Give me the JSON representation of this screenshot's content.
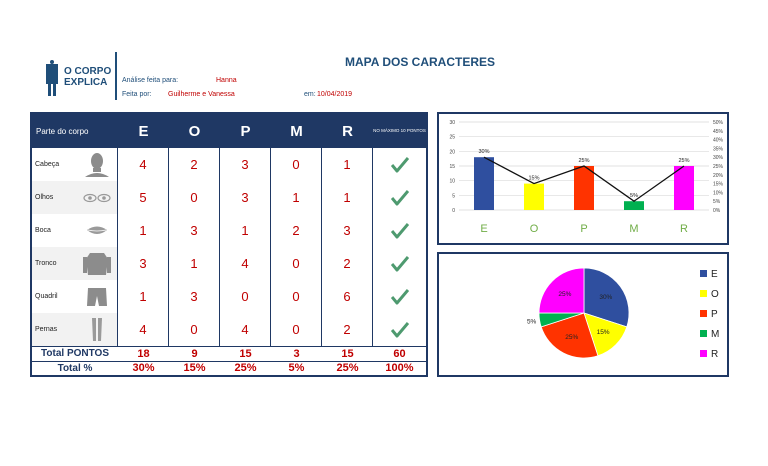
{
  "header": {
    "logo_line1": "O CORPO",
    "logo_line2": "EXPLICA",
    "analysis_label": "Análise feita para:",
    "analysis_value": "Hanna",
    "made_by_label": "Feita por:",
    "made_by_value": "Guilherme e Vanessa",
    "date_label": "em:",
    "date_value": "10/04/2019",
    "title": "MAPA DOS CARACTERES"
  },
  "table": {
    "corner_label": "Parte do corpo",
    "columns": [
      "E",
      "O",
      "P",
      "M",
      "R"
    ],
    "last_col_label": "NO MÁXIMO 10 PONTOS",
    "rows": [
      {
        "label": "Cabeça",
        "icon": "head-icon",
        "values": [
          4,
          2,
          3,
          0,
          1
        ]
      },
      {
        "label": "Olhos",
        "icon": "eyes-icon",
        "values": [
          5,
          0,
          3,
          1,
          1
        ]
      },
      {
        "label": "Boca",
        "icon": "mouth-icon",
        "values": [
          1,
          3,
          1,
          2,
          3
        ]
      },
      {
        "label": "Tronco",
        "icon": "torso-icon",
        "values": [
          3,
          1,
          4,
          0,
          2
        ]
      },
      {
        "label": "Quadril",
        "icon": "hip-icon",
        "values": [
          1,
          3,
          0,
          0,
          6
        ]
      },
      {
        "label": "Pernas",
        "icon": "legs-icon",
        "values": [
          4,
          0,
          4,
          0,
          2
        ]
      }
    ],
    "total_label": "Total PONTOS",
    "totals": [
      "18",
      "9",
      "15",
      "3",
      "15",
      "60"
    ],
    "percent_label": "Total %",
    "percents": [
      "30%",
      "15%",
      "25%",
      "5%",
      "25%",
      "100%"
    ]
  },
  "colors": {
    "navy": "#1f3864",
    "red": "#c00000",
    "check": "#4e9a6f",
    "E": "#2f4f9f",
    "O": "#ffff00",
    "P": "#ff3300",
    "M": "#00b050",
    "R": "#ff00ff"
  },
  "chart_data": [
    {
      "type": "bar",
      "categories": [
        "E",
        "O",
        "P",
        "M",
        "R"
      ],
      "values": [
        18,
        9,
        15,
        3,
        15
      ],
      "ylim": [
        0,
        30
      ],
      "yticks": [
        "0",
        "5",
        "10",
        "15",
        "20",
        "25",
        "30"
      ],
      "secondary_line": {
        "values": [
          30,
          15,
          25,
          5,
          25
        ],
        "labels": [
          "30%",
          "15%",
          "25%",
          "5%",
          "25%"
        ],
        "ylim": [
          0,
          50
        ],
        "yticks": [
          "0%",
          "5%",
          "10%",
          "15%",
          "20%",
          "25%",
          "30%",
          "35%",
          "40%",
          "45%",
          "50%"
        ]
      }
    },
    {
      "type": "pie",
      "labels": [
        "E",
        "O",
        "P",
        "M",
        "R"
      ],
      "values": [
        30,
        15,
        25,
        5,
        25
      ],
      "value_labels": [
        "30%",
        "15%",
        "25%",
        "5%",
        "25%"
      ],
      "legend": "right"
    }
  ]
}
